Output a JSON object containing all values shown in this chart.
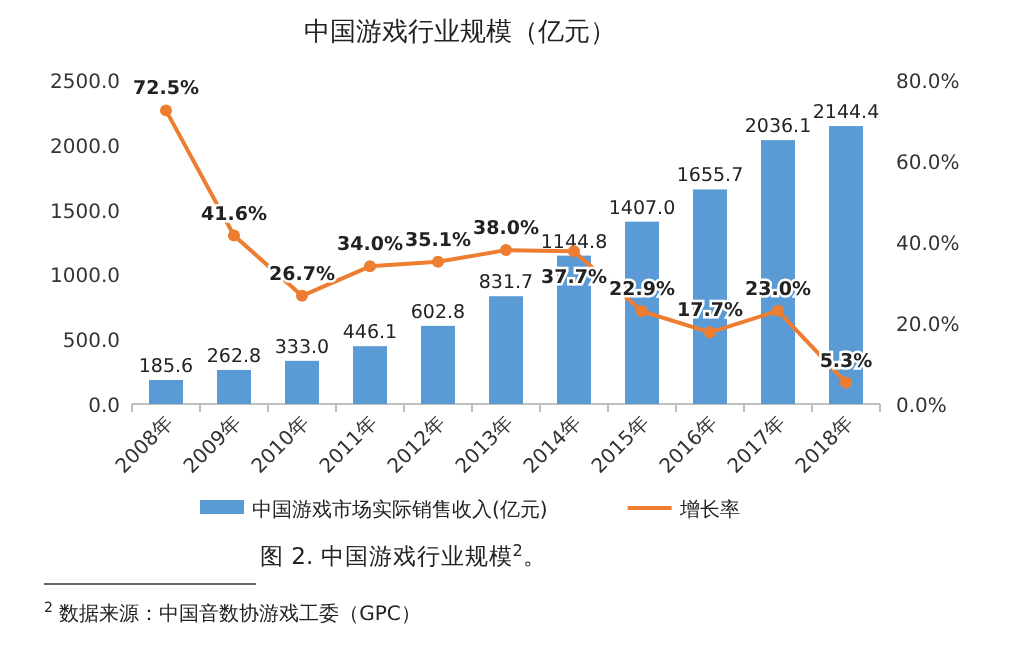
{
  "chart_data": {
    "type": "bar",
    "title": "中国游戏行业规模（亿元）",
    "categories": [
      "2008年",
      "2009年",
      "2010年",
      "2011年",
      "2012年",
      "2013年",
      "2014年",
      "2015年",
      "2016年",
      "2017年",
      "2018年"
    ],
    "series": [
      {
        "name": "中国游戏市场实际销售收入(亿元)",
        "color": "#5b9bd5",
        "values": [
          185.6,
          262.8,
          333.0,
          446.1,
          602.8,
          831.7,
          1144.8,
          1407.0,
          1655.7,
          2036.1,
          2144.4
        ],
        "value_labels": [
          "185.6",
          "262.8",
          "333.0",
          "446.1",
          "602.8",
          "831.7",
          "1144.8",
          "1407.0",
          "1655.7",
          "2036.1",
          "2144.4"
        ]
      },
      {
        "name": "增长率",
        "type": "line",
        "axis": "y2",
        "color": "#ed7d31",
        "marker": "circle",
        "values": [
          72.5,
          41.6,
          26.7,
          34.0,
          35.1,
          38.0,
          37.7,
          22.9,
          17.7,
          23.0,
          5.3
        ],
        "value_labels": [
          "72.5%",
          "41.6%",
          "26.7%",
          "34.0%",
          "35.1%",
          "38.0%",
          "37.7%",
          "22.9%",
          "17.7%",
          "23.0%",
          "5.3%"
        ]
      }
    ],
    "ylim": [
      0,
      2500
    ],
    "yticks": [
      {
        "value": 0,
        "label": "0.0"
      },
      {
        "value": 500,
        "label": "500.0"
      },
      {
        "value": 1000,
        "label": "1000.0"
      },
      {
        "value": 1500,
        "label": "1500.0"
      },
      {
        "value": 2000,
        "label": "2000.0"
      },
      {
        "value": 2500,
        "label": "2500.0"
      }
    ],
    "y2lim": [
      0,
      80
    ],
    "y2ticks": [
      {
        "value": 0,
        "label": "0.0%"
      },
      {
        "value": 20,
        "label": "20.0%"
      },
      {
        "value": 40,
        "label": "40.0%"
      },
      {
        "value": 60,
        "label": "60.0%"
      },
      {
        "value": 80,
        "label": "80.0%"
      }
    ],
    "legend": "bottom",
    "annotations": [
      "图 2. 中国游戏行业规模$^{2}$。",
      "$^{2}$ 数据来源：中国音数协游戏工委（GPC）"
    ]
  }
}
